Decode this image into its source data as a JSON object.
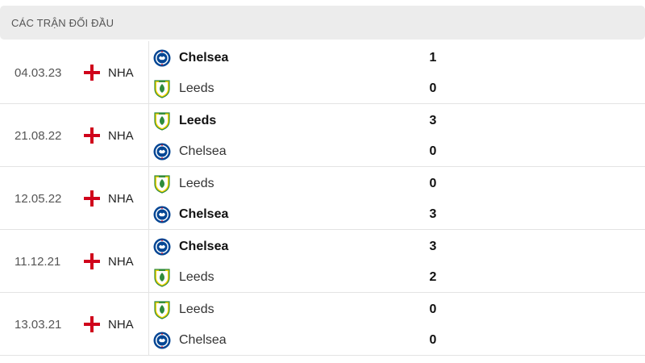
{
  "section_title": "CÁC TRẬN ĐỐI ĐẦU",
  "matches": [
    {
      "date": "04.03.23",
      "league": "NHA",
      "team1": {
        "name": "Chelsea",
        "crest": "chelsea-crest-icon",
        "score": "1",
        "winner": true
      },
      "team2": {
        "name": "Leeds",
        "crest": "leeds-crest-icon",
        "score": "0",
        "winner": false
      }
    },
    {
      "date": "21.08.22",
      "league": "NHA",
      "team1": {
        "name": "Leeds",
        "crest": "leeds-crest-icon",
        "score": "3",
        "winner": true
      },
      "team2": {
        "name": "Chelsea",
        "crest": "chelsea-crest-icon",
        "score": "0",
        "winner": false
      }
    },
    {
      "date": "12.05.22",
      "league": "NHA",
      "team1": {
        "name": "Leeds",
        "crest": "leeds-crest-icon",
        "score": "0",
        "winner": false
      },
      "team2": {
        "name": "Chelsea",
        "crest": "chelsea-crest-icon",
        "score": "3",
        "winner": true
      }
    },
    {
      "date": "11.12.21",
      "league": "NHA",
      "team1": {
        "name": "Chelsea",
        "crest": "chelsea-crest-icon",
        "score": "3",
        "winner": true
      },
      "team2": {
        "name": "Leeds",
        "crest": "leeds-crest-icon",
        "score": "2",
        "winner": false
      }
    },
    {
      "date": "13.03.21",
      "league": "NHA",
      "team1": {
        "name": "Leeds",
        "crest": "leeds-crest-icon",
        "score": "0",
        "winner": false
      },
      "team2": {
        "name": "Chelsea",
        "crest": "chelsea-crest-icon",
        "score": "0",
        "winner": false
      }
    }
  ],
  "colors": {
    "header_bg": "#ececec",
    "flag_red": "#d0021b",
    "chelsea_blue": "#034694",
    "leeds_yellow": "#f5d300",
    "leeds_green": "#2e8b3d"
  }
}
